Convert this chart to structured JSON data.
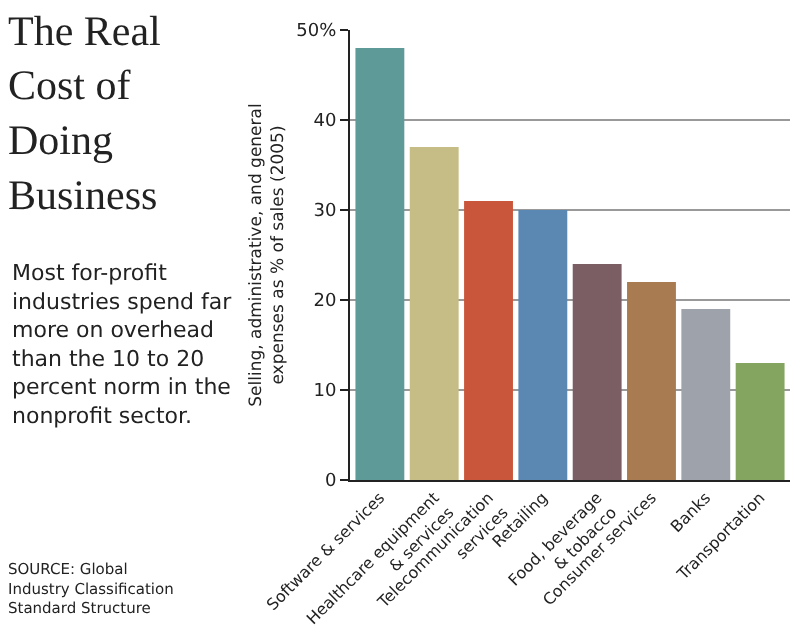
{
  "chart_data": {
    "type": "bar",
    "title": "The Real\nCost of\nDoing\nBusiness",
    "subtitle": "Most for-profit\nindustries spend far\nmore on overhead\nthan the 10 to 20\npercent norm in the\nnonprofit sector.",
    "ylabel": "Selling, administrative, and general\nexpenses as % of sales (2005)",
    "annotations": [
      "SOURCE: Global\nIndustry Classification\nStandard Structure"
    ],
    "categories": [
      "Software & services",
      "Healthcare equipment\n& services",
      "Telecommunication\nservices",
      "Retailing",
      "Food, beverage\n& tobacco",
      "Consumer services",
      "Banks",
      "Transportation"
    ],
    "values": [
      48,
      37,
      31,
      30,
      24,
      22,
      19,
      13
    ],
    "colors": [
      "#5e9a98",
      "#c6bc85",
      "#c9553a",
      "#5b88b3",
      "#7a5e63",
      "#a97b50",
      "#9ea2aa",
      "#84a55f"
    ],
    "ylim": [
      0,
      50
    ],
    "yticks": [
      0,
      10,
      20,
      30,
      40,
      {
        "value": 50,
        "label": "50%"
      }
    ],
    "grid": "y"
  }
}
